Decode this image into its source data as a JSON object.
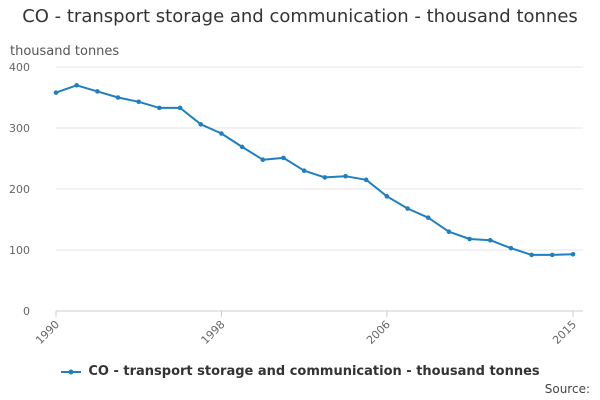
{
  "chart_data": {
    "type": "line",
    "title": "CO - transport storage and communication - thousand tonnes",
    "ylabel": "thousand tonnes",
    "xlabel": "",
    "ylim": [
      0,
      400
    ],
    "yticks": [
      0,
      100,
      200,
      300,
      400
    ],
    "xlim": [
      1990,
      2015
    ],
    "xticks": [
      1990,
      1998,
      2006,
      2015
    ],
    "grid": true,
    "legend_position": "bottom",
    "series": [
      {
        "name": "CO - transport storage and communication - thousand tonnes",
        "color": "#1f7fbf",
        "x": [
          1990,
          1991,
          1992,
          1993,
          1994,
          1995,
          1996,
          1997,
          1998,
          1999,
          2000,
          2001,
          2002,
          2003,
          2004,
          2005,
          2006,
          2007,
          2008,
          2009,
          2010,
          2011,
          2012,
          2013,
          2014,
          2015
        ],
        "values": [
          358,
          370,
          360,
          350,
          343,
          333,
          333,
          306,
          291,
          269,
          248,
          251,
          230,
          219,
          221,
          215,
          188,
          168,
          153,
          130,
          118,
          116,
          103,
          92,
          92,
          93
        ]
      }
    ]
  },
  "source_label": "Source:"
}
